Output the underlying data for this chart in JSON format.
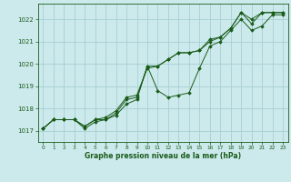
{
  "title": "Graphe pression niveau de la mer (hPa)",
  "bg_color": "#cce9ec",
  "grid_color": "#a8cfd3",
  "line_color": "#1a5c1a",
  "marker_color": "#1a5c1a",
  "xlim": [
    -0.5,
    23.5
  ],
  "ylim": [
    1016.5,
    1022.7
  ],
  "yticks": [
    1017,
    1018,
    1019,
    1020,
    1021,
    1022
  ],
  "xticks": [
    0,
    1,
    2,
    3,
    4,
    5,
    6,
    7,
    8,
    9,
    10,
    11,
    12,
    13,
    14,
    15,
    16,
    17,
    18,
    19,
    20,
    21,
    22,
    23
  ],
  "series1_x": [
    0,
    1,
    2,
    3,
    4,
    5,
    6,
    7,
    8,
    9,
    10,
    11,
    12,
    13,
    14,
    15,
    16,
    17,
    18,
    19,
    20,
    21,
    22,
    23
  ],
  "series1_y": [
    1017.1,
    1017.5,
    1017.5,
    1017.5,
    1017.2,
    1017.5,
    1017.5,
    1017.8,
    1018.4,
    1018.5,
    1019.9,
    1019.9,
    1020.2,
    1020.5,
    1020.5,
    1020.6,
    1021.0,
    1021.2,
    1021.6,
    1022.3,
    1021.8,
    1022.3,
    1022.3,
    1022.3
  ],
  "series2_x": [
    0,
    1,
    2,
    3,
    4,
    5,
    6,
    7,
    8,
    9,
    10,
    11,
    12,
    13,
    14,
    15,
    16,
    17,
    18,
    19,
    20,
    21,
    22,
    23
  ],
  "series2_y": [
    1017.1,
    1017.5,
    1017.5,
    1017.5,
    1017.1,
    1017.4,
    1017.5,
    1017.7,
    1018.2,
    1018.4,
    1019.9,
    1018.8,
    1018.5,
    1018.6,
    1018.7,
    1019.8,
    1020.8,
    1021.0,
    1021.5,
    1022.0,
    1021.5,
    1021.7,
    1022.2,
    1022.2
  ],
  "series3_x": [
    0,
    1,
    2,
    3,
    4,
    5,
    6,
    7,
    8,
    9,
    10,
    11,
    12,
    13,
    14,
    15,
    16,
    17,
    18,
    19,
    20,
    21,
    22,
    23
  ],
  "series3_y": [
    1017.1,
    1017.5,
    1017.5,
    1017.5,
    1017.2,
    1017.5,
    1017.6,
    1017.9,
    1018.5,
    1018.6,
    1019.8,
    1019.9,
    1020.2,
    1020.5,
    1020.5,
    1020.6,
    1021.1,
    1021.2,
    1021.6,
    1022.3,
    1022.0,
    1022.3,
    1022.3,
    1022.3
  ]
}
